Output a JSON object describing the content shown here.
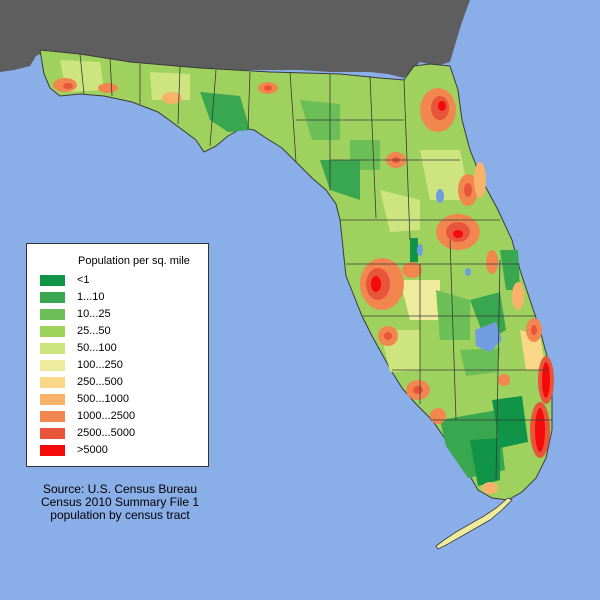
{
  "legend": {
    "title": "Population per sq. mile",
    "items": [
      {
        "label": "<1",
        "color": "#0f9448"
      },
      {
        "label": "1...10",
        "color": "#39a650"
      },
      {
        "label": "10...25",
        "color": "#6cbf57"
      },
      {
        "label": "25...50",
        "color": "#9dd35b"
      },
      {
        "label": "50...100",
        "color": "#cde47f"
      },
      {
        "label": "100...250",
        "color": "#eeec9c"
      },
      {
        "label": "250...500",
        "color": "#fbd788"
      },
      {
        "label": "500...1000",
        "color": "#f9b26a"
      },
      {
        "label": "1000...2500",
        "color": "#f2864f"
      },
      {
        "label": "2500...5000",
        "color": "#e8553b"
      },
      {
        "label": ">5000",
        "color": "#f50a0a"
      }
    ]
  },
  "source": {
    "lines": [
      "Source: U.S. Census Bureau",
      "Census 2010 Summary File 1",
      "population by census tract"
    ]
  },
  "colors": {
    "ocean": "#8aaee8",
    "neighbor_land": "#5e5e5e",
    "county_border": "#3a3a3a",
    "lakes": "#6f9de0"
  }
}
